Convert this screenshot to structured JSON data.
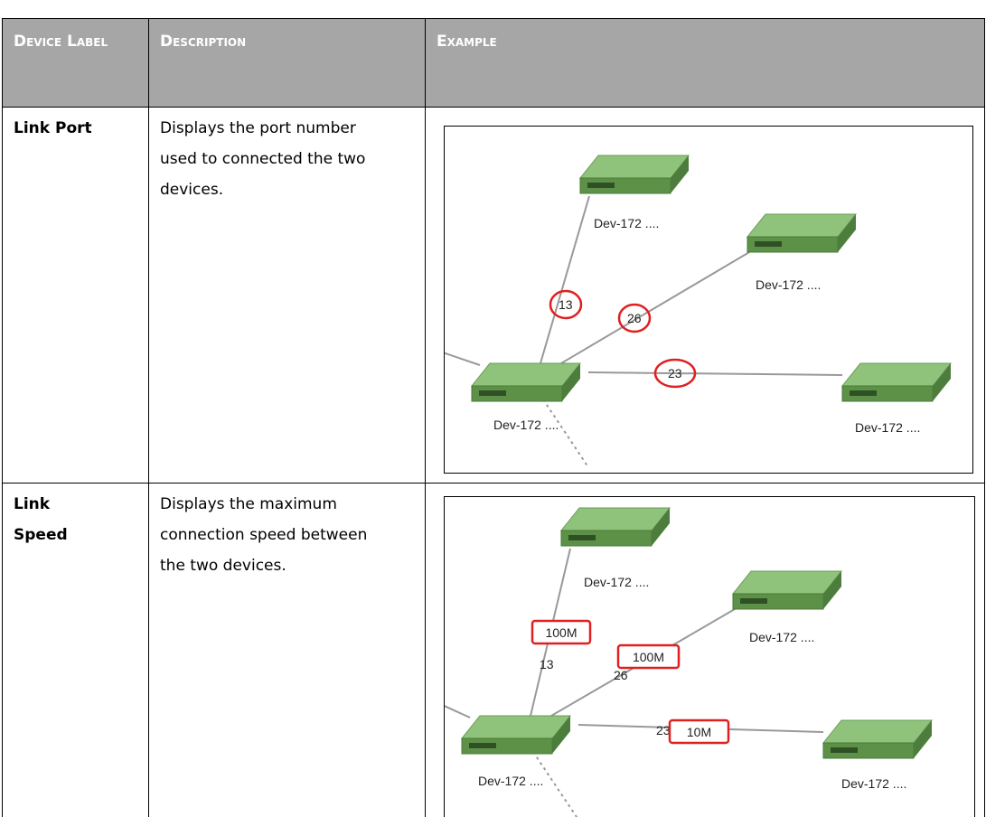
{
  "table": {
    "header": [
      "Device Label",
      "Description",
      "Example"
    ],
    "rows": [
      {
        "label": "Link Port",
        "description": "Displays the port number used to connected the two devices.",
        "example": {
          "devices": [
            "Dev-172 ....",
            "Dev-172 ....",
            "Dev-172 ....",
            "Dev-172 ...."
          ],
          "port_labels": [
            "13",
            "26",
            "23"
          ]
        }
      },
      {
        "label": "Link Speed",
        "description": "Displays the maximum connection speed between the two devices.",
        "example": {
          "devices": [
            "Dev-172 ....",
            "Dev-172 ....",
            "Dev-172 ....",
            "Dev-172 ...."
          ],
          "port_labels": [
            "13",
            "26",
            "23"
          ],
          "speed_labels": [
            "100M",
            "100M",
            "10M"
          ]
        }
      }
    ]
  }
}
